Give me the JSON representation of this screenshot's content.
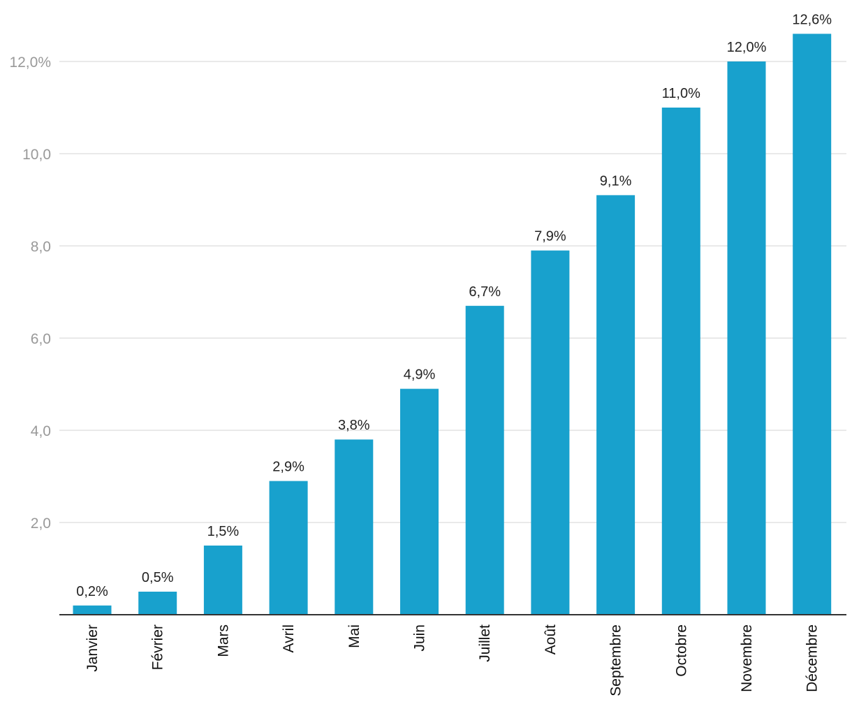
{
  "chart_data": {
    "type": "bar",
    "title": "",
    "xlabel": "",
    "ylabel": "",
    "categories": [
      "Janvier",
      "Février",
      "Mars",
      "Avril",
      "Mai",
      "Juin",
      "Juillet",
      "Août",
      "Septembre",
      "Octobre",
      "Novembre",
      "Décembre"
    ],
    "values": [
      0.2,
      0.5,
      1.5,
      2.9,
      3.8,
      4.9,
      6.7,
      7.9,
      9.1,
      11.0,
      12.0,
      12.6
    ],
    "data_labels": [
      "0,2%",
      "0,5%",
      "1,5%",
      "2,9%",
      "3,8%",
      "4,9%",
      "6,7%",
      "7,9%",
      "9,1%",
      "11,0%",
      "12,0%",
      "12,6%"
    ],
    "y_ticks": [
      2,
      4,
      6,
      8,
      10,
      12
    ],
    "y_tick_labels": [
      "2,0",
      "4,0",
      "6,0",
      "8,0",
      "10,0",
      "12,0%"
    ],
    "ylim": [
      0,
      12.6
    ],
    "grid": true,
    "legend": "none",
    "bar_color": "#18a1cd"
  }
}
